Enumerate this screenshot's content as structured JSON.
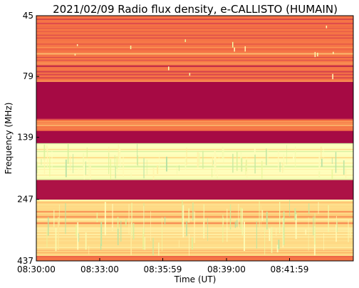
{
  "chart_data": {
    "type": "heatmap",
    "title": "2021/02/09  Radio flux density, e-CALLISTO (HUMAIN)",
    "xlabel": "Time (UT)",
    "ylabel": "Frequency (MHz)",
    "x_ticks": [
      "08:30:00",
      "08:33:00",
      "08:35:59",
      "08:39:00",
      "08:41:59"
    ],
    "x_tick_seconds": [
      0,
      180,
      359,
      540,
      719
    ],
    "x_range_seconds": [
      0,
      900
    ],
    "y_ticks": [
      45,
      79,
      139,
      247,
      437
    ],
    "y_range": [
      45,
      437
    ],
    "y_inverted": true,
    "grid": false,
    "colorscale": [
      "#9e0142",
      "#d53e4f",
      "#f46d43",
      "#fdae61",
      "#fee08b",
      "#ffffbf",
      "#e6f598",
      "#abdda4"
    ],
    "bands": [
      {
        "from": 0.0,
        "to": 0.27,
        "level": 0.3
      },
      {
        "from": 0.27,
        "to": 0.42,
        "level": 0.02
      },
      {
        "from": 0.42,
        "to": 0.47,
        "level": 0.3
      },
      {
        "from": 0.47,
        "to": 0.52,
        "level": 0.02
      },
      {
        "from": 0.52,
        "to": 0.67,
        "level": 0.72
      },
      {
        "from": 0.67,
        "to": 0.75,
        "level": 0.04
      },
      {
        "from": 0.75,
        "to": 0.98,
        "level": 0.55
      },
      {
        "from": 0.98,
        "to": 1.0,
        "level": 0.3
      }
    ]
  }
}
